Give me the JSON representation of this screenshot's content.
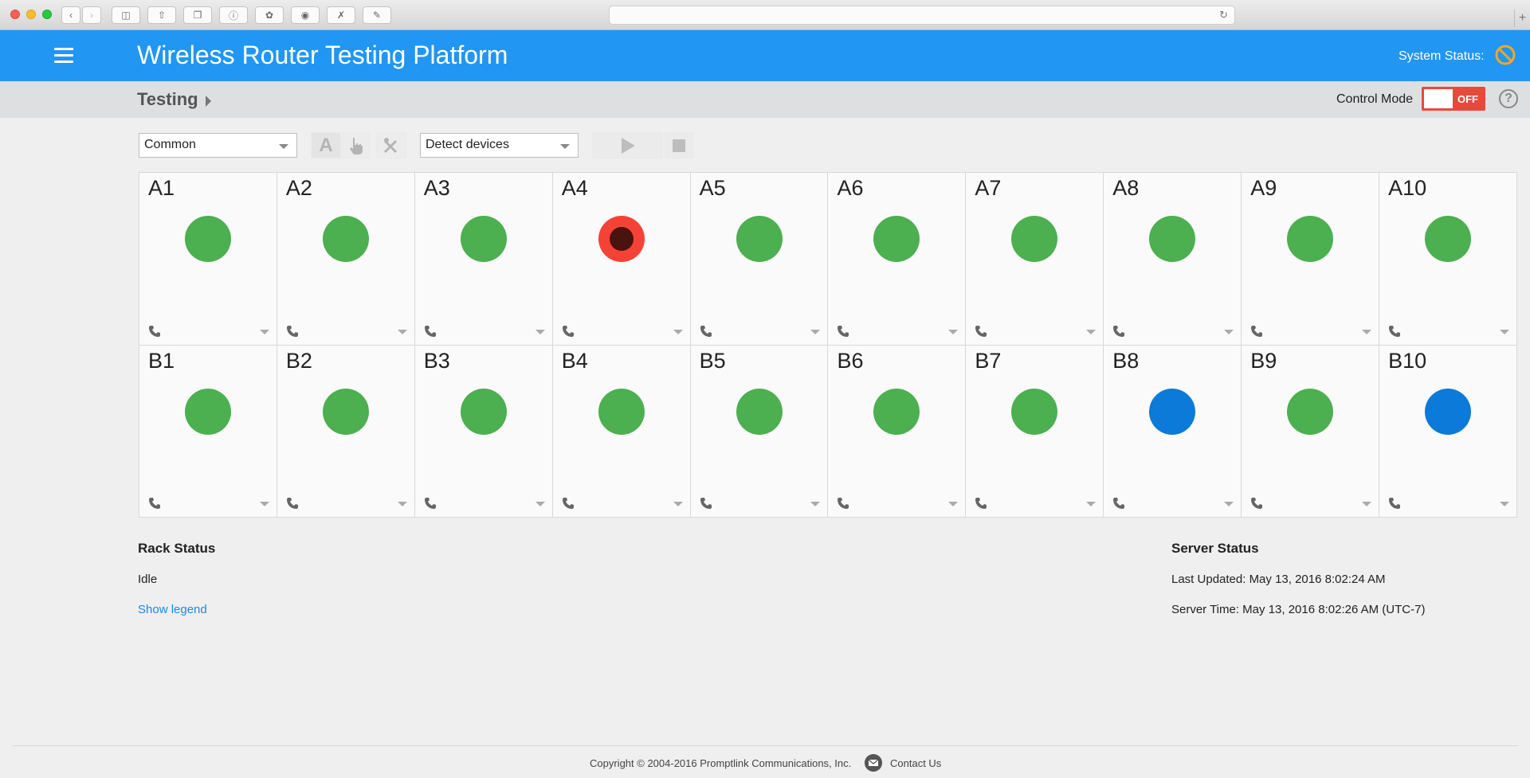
{
  "header": {
    "title": "Wireless Router Testing Platform",
    "system_status_label": "System Status:"
  },
  "breadcrumb": {
    "current": "Testing"
  },
  "control_mode": {
    "label": "Control Mode",
    "state": "OFF"
  },
  "toolbar": {
    "profile_select": "Common",
    "action_select": "Detect devices",
    "auto_label": "A"
  },
  "slots": {
    "row_a": [
      {
        "label": "A1",
        "status": "green"
      },
      {
        "label": "A2",
        "status": "green"
      },
      {
        "label": "A3",
        "status": "green"
      },
      {
        "label": "A4",
        "status": "red"
      },
      {
        "label": "A5",
        "status": "green"
      },
      {
        "label": "A6",
        "status": "green"
      },
      {
        "label": "A7",
        "status": "green"
      },
      {
        "label": "A8",
        "status": "green"
      },
      {
        "label": "A9",
        "status": "green"
      },
      {
        "label": "A10",
        "status": "green"
      }
    ],
    "row_b": [
      {
        "label": "B1",
        "status": "green"
      },
      {
        "label": "B2",
        "status": "green"
      },
      {
        "label": "B3",
        "status": "green"
      },
      {
        "label": "B4",
        "status": "green"
      },
      {
        "label": "B5",
        "status": "green"
      },
      {
        "label": "B6",
        "status": "green"
      },
      {
        "label": "B7",
        "status": "green"
      },
      {
        "label": "B8",
        "status": "blue"
      },
      {
        "label": "B9",
        "status": "green"
      },
      {
        "label": "B10",
        "status": "blue"
      }
    ]
  },
  "rack_status": {
    "title": "Rack Status",
    "state": "Idle",
    "legend_link": "Show legend"
  },
  "server_status": {
    "title": "Server Status",
    "last_updated": "Last Updated: May 13, 2016 8:02:24 AM",
    "server_time": "Server Time: May 13, 2016 8:02:26 AM (UTC-7)"
  },
  "footer": {
    "copyright": "Copyright © 2004-2016 Promptlink Communications, Inc.",
    "contact": "Contact Us"
  },
  "colors": {
    "brand": "#2196f3",
    "ok": "#4caf50",
    "error": "#f44336",
    "busy": "#0b7ad8",
    "warning_icon": "#f5a623"
  }
}
